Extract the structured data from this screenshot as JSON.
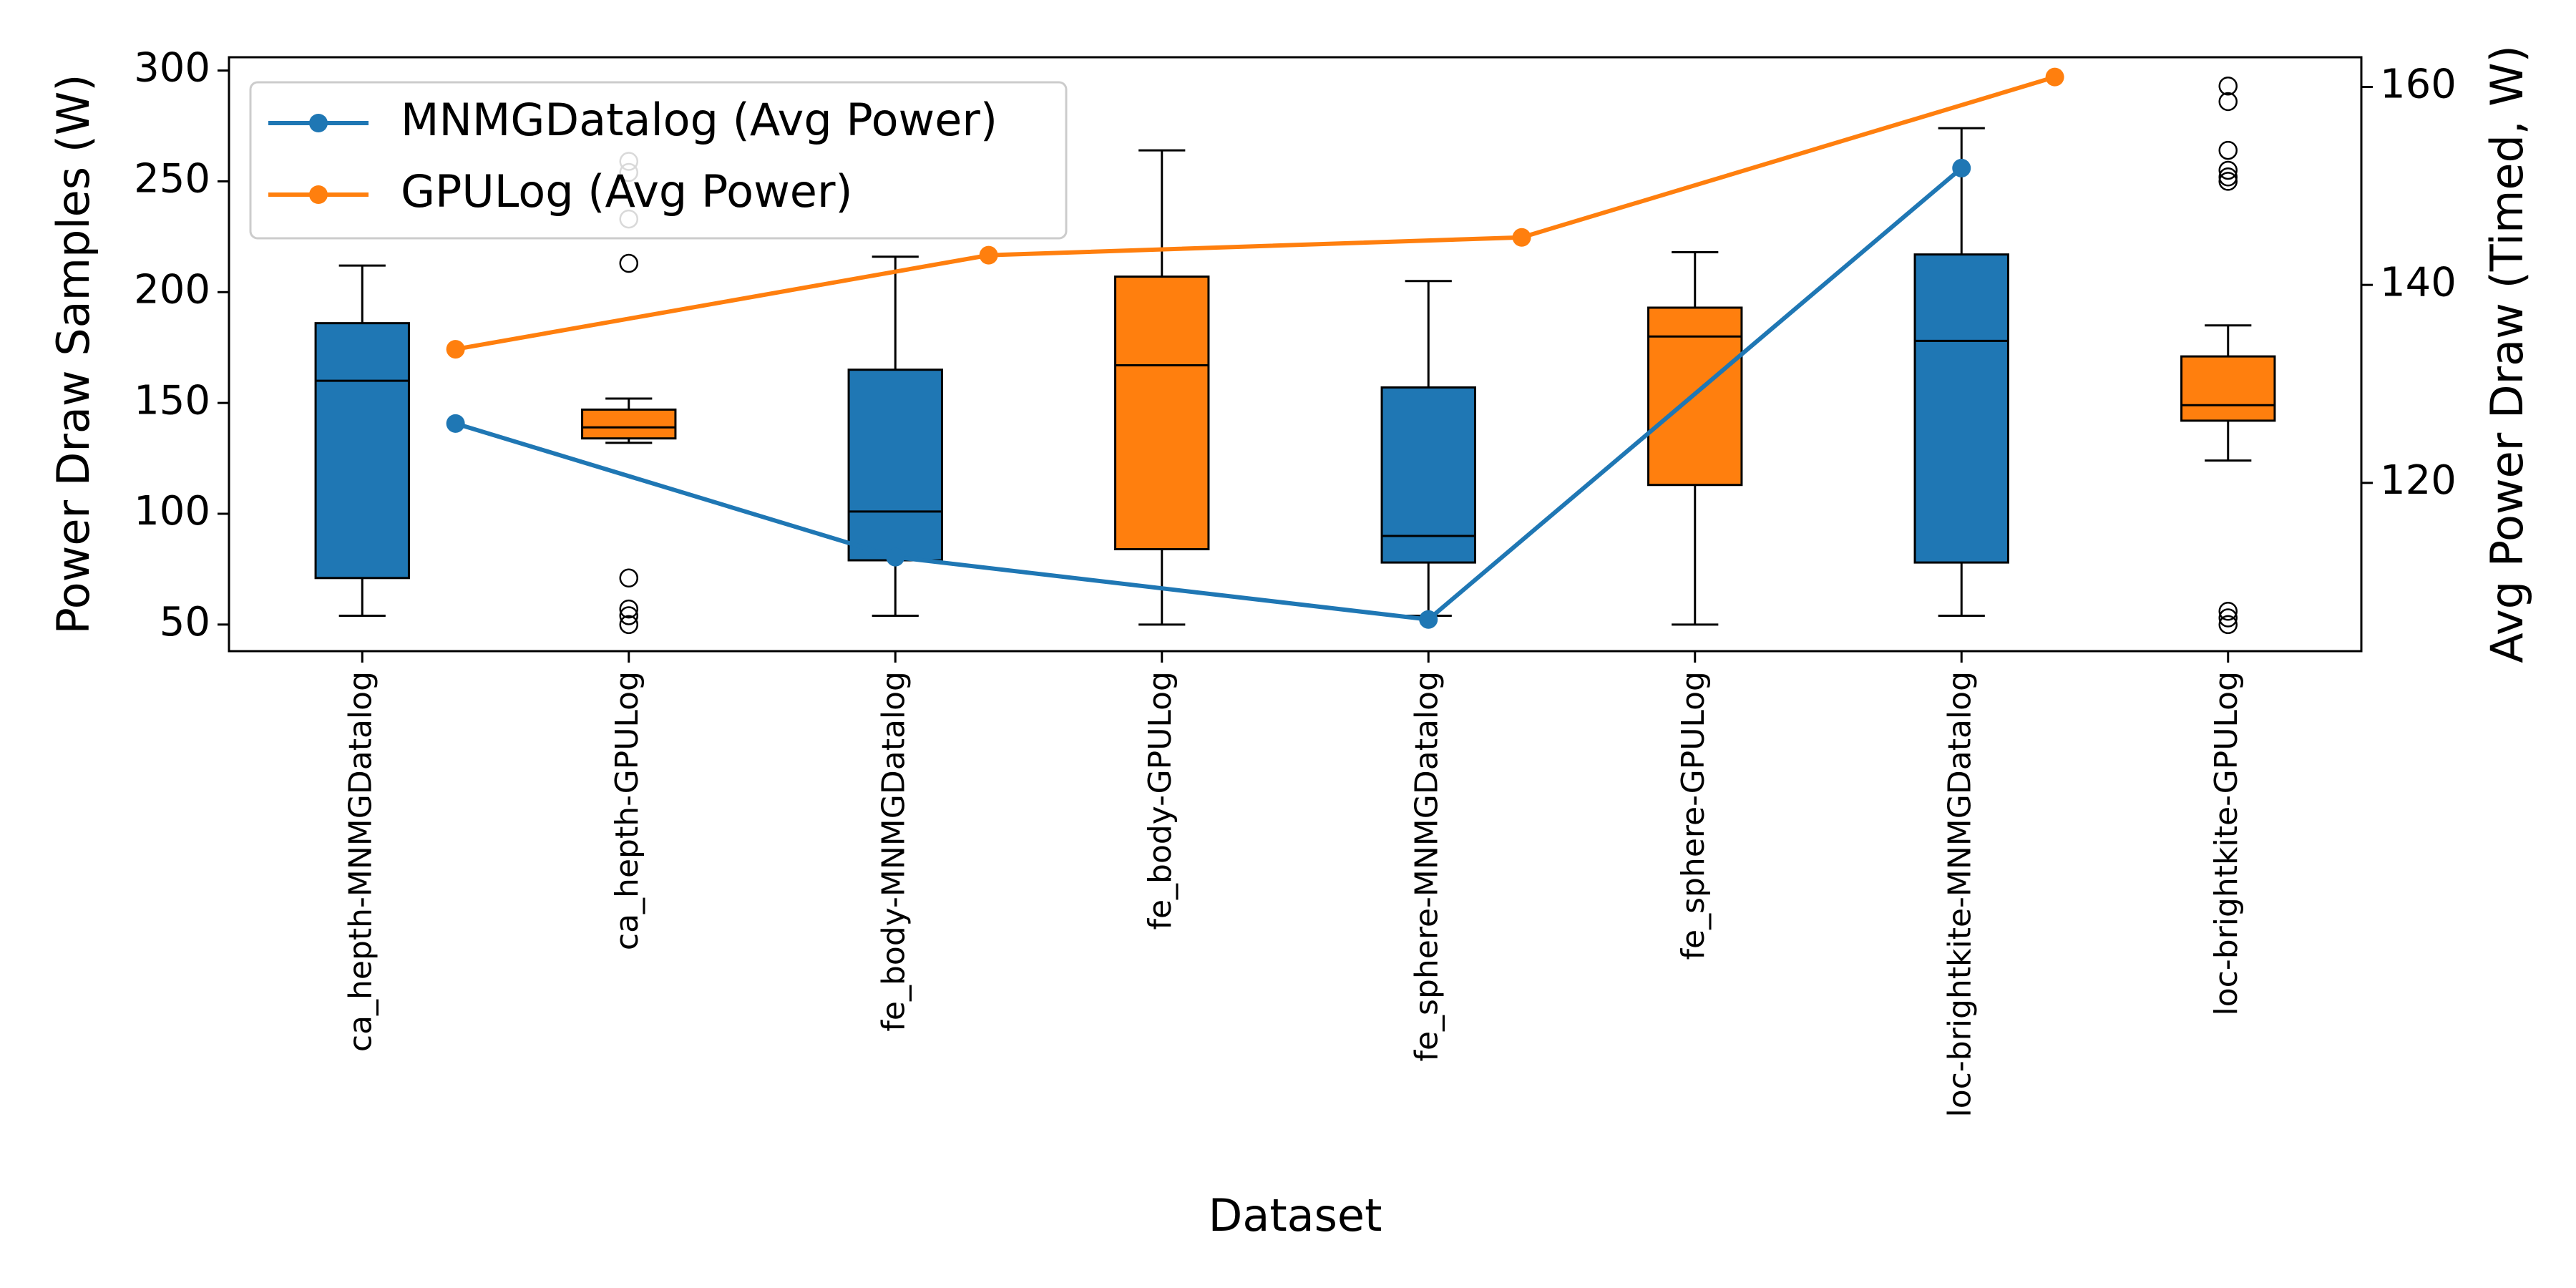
{
  "chart_data": {
    "type": "box",
    "xlabel": "Dataset",
    "ylabel_left": "Power Draw Samples (W)",
    "ylabel_right": "Avg Power Draw (Timed, W)",
    "ylim_left": [
      38,
      306
    ],
    "yticks_left": [
      50,
      100,
      150,
      200,
      250,
      300
    ],
    "ylim_right": [
      103,
      163
    ],
    "yticks_right": [
      120,
      140,
      160
    ],
    "categories": [
      "ca_hepth-MNMGDatalog",
      "ca_hepth-GPULog",
      "fe_body-MNMGDatalog",
      "fe_body-GPULog",
      "fe_sphere-MNMGDatalog",
      "fe_sphere-GPULog",
      "loc-brightkite-MNMGDatalog",
      "loc-brightkite-GPULog"
    ],
    "boxes": [
      {
        "color": "#1f77b4",
        "whisker_low": 54,
        "q1": 71,
        "median": 160,
        "q3": 186,
        "whisker_high": 212,
        "outliers": []
      },
      {
        "color": "#ff7f0e",
        "whisker_low": 132,
        "q1": 134,
        "median": 139,
        "q3": 147,
        "whisker_high": 152,
        "outliers": [
          50,
          54,
          57,
          71,
          213,
          233,
          254,
          259
        ]
      },
      {
        "color": "#1f77b4",
        "whisker_low": 54,
        "q1": 79,
        "median": 101,
        "q3": 165,
        "whisker_high": 216,
        "outliers": []
      },
      {
        "color": "#ff7f0e",
        "whisker_low": 50,
        "q1": 84,
        "median": 167,
        "q3": 207,
        "whisker_high": 264,
        "outliers": []
      },
      {
        "color": "#1f77b4",
        "whisker_low": 54,
        "q1": 78,
        "median": 90,
        "q3": 157,
        "whisker_high": 205,
        "outliers": []
      },
      {
        "color": "#ff7f0e",
        "whisker_low": 50,
        "q1": 113,
        "median": 180,
        "q3": 193,
        "whisker_high": 218,
        "outliers": []
      },
      {
        "color": "#1f77b4",
        "whisker_low": 54,
        "q1": 78,
        "median": 178,
        "q3": 217,
        "whisker_high": 274,
        "outliers": []
      },
      {
        "color": "#ff7f0e",
        "whisker_low": 124,
        "q1": 142,
        "median": 149,
        "q3": 171,
        "whisker_high": 185,
        "outliers": [
          50,
          53,
          56,
          250,
          252,
          255,
          264,
          286,
          293
        ]
      }
    ],
    "series": [
      {
        "name": "MNMGDatalog (Avg Power)",
        "color": "#1f77b4",
        "x": [
          0.35,
          2.0,
          4.0,
          6.0
        ],
        "values": [
          126,
          112.5,
          106.2,
          151.8
        ]
      },
      {
        "name": "GPULog (Avg Power)",
        "color": "#ff7f0e",
        "x": [
          0.35,
          2.35,
          4.35,
          6.35
        ],
        "values": [
          133.5,
          143,
          144.8,
          161
        ]
      }
    ],
    "legend_position": "top-left",
    "grid": false
  }
}
